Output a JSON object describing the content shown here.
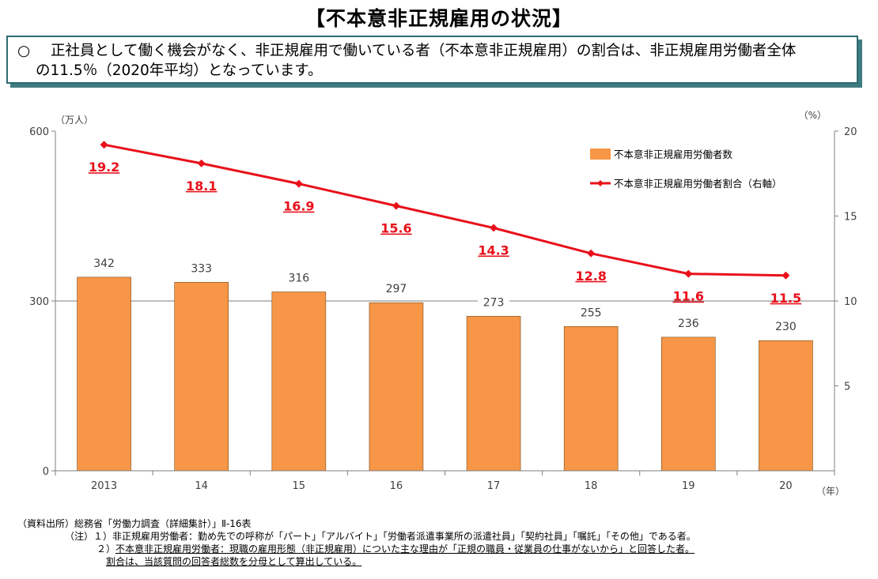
{
  "title": "【不本意非正規雇用の状況】",
  "summary": {
    "mark": "○",
    "line1": "正社員として働く機会がなく、非正規雇用で働いている者（不本意非正規雇用）の割合は、非正規雇用労働者全体",
    "line2": "の11.5％（2020年平均）となっています。"
  },
  "chart_data": {
    "type": "bar+line",
    "categories": [
      "2013",
      "14",
      "15",
      "16",
      "17",
      "18",
      "19",
      "20"
    ],
    "series": [
      {
        "name": "不本意非正規雇用労働者数",
        "type": "bar",
        "axis": "left",
        "values": [
          342,
          333,
          316,
          297,
          273,
          255,
          236,
          230
        ],
        "color": "#f79646"
      },
      {
        "name": "不本意非正規雇用労働者割合（右軸）",
        "type": "line",
        "axis": "right",
        "values": [
          19.2,
          18.1,
          16.9,
          15.6,
          14.3,
          12.8,
          11.6,
          11.5
        ],
        "color": "#e8101a"
      }
    ],
    "left_axis": {
      "unit": "（万人）",
      "ylim": [
        0,
        600
      ],
      "ticks": [
        0,
        300,
        600
      ]
    },
    "right_axis": {
      "unit": "（%）",
      "ylim": [
        0,
        20
      ],
      "ticks": [
        5,
        10,
        15,
        20
      ]
    },
    "x_unit": "（年）",
    "legend_position": "top-right"
  },
  "notes": {
    "source": "（資料出所）総務省「労働力調査（詳細集計）」Ⅱ-16表",
    "note1_prefix": "（注）１）",
    "note1": "非正規雇用労働者：勤め先での呼称が「パート」「アルバイト」「労働者派遣事業所の派遣社員」「契約社員」「嘱託」「その他」である者。",
    "note2_prefix": "２）",
    "note2": "不本意非正規雇用労働者：現職の雇用形態（非正規雇用）についた主な理由が「正規の職員・従業員の仕事がないから」と回答した者。",
    "note3": "割合は、当該質問の回答者総数を分母として算出している。"
  }
}
